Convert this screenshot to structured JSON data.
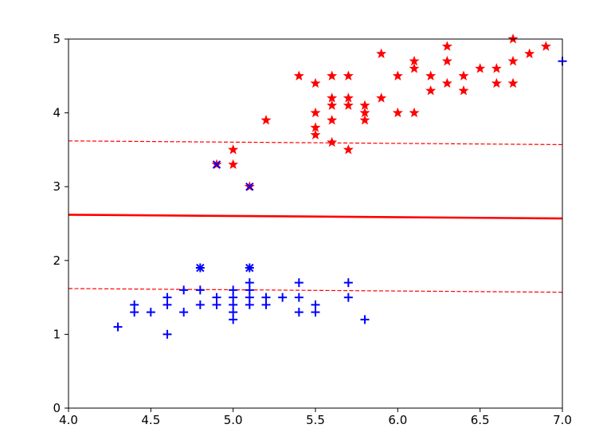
{
  "chart_data": {
    "type": "scatter",
    "xlim": [
      4.0,
      7.0
    ],
    "ylim": [
      0,
      5
    ],
    "xticks": [
      4.0,
      4.5,
      5.0,
      5.5,
      6.0,
      6.5,
      7.0
    ],
    "xtick_labels": [
      "4.0",
      "4.5",
      "5.0",
      "5.5",
      "6.0",
      "6.5",
      "7.0"
    ],
    "yticks": [
      0,
      1,
      2,
      3,
      4,
      5
    ],
    "ytick_labels": [
      "0",
      "1",
      "2",
      "3",
      "4",
      "5"
    ],
    "grid": false,
    "colors": {
      "positive": "#ff0000",
      "negative": "#0000ff",
      "support_vector": "#0000ff",
      "line": "#ff0000"
    },
    "series": [
      {
        "marker": "star",
        "color": "#ff0000",
        "points": [
          [
            4.9,
            3.3
          ],
          [
            5.0,
            3.5
          ],
          [
            5.0,
            3.3
          ],
          [
            5.1,
            3.0
          ],
          [
            5.2,
            3.9
          ],
          [
            5.4,
            4.5
          ],
          [
            5.5,
            4.4
          ],
          [
            5.5,
            4.0
          ],
          [
            5.5,
            3.8
          ],
          [
            5.5,
            3.7
          ],
          [
            5.6,
            4.5
          ],
          [
            5.6,
            4.2
          ],
          [
            5.6,
            4.1
          ],
          [
            5.6,
            3.9
          ],
          [
            5.6,
            3.6
          ],
          [
            5.7,
            4.5
          ],
          [
            5.7,
            4.2
          ],
          [
            5.7,
            4.1
          ],
          [
            5.7,
            3.5
          ],
          [
            5.8,
            4.1
          ],
          [
            5.8,
            4.0
          ],
          [
            5.8,
            3.9
          ],
          [
            5.9,
            4.8
          ],
          [
            5.9,
            4.2
          ],
          [
            6.0,
            4.5
          ],
          [
            6.0,
            4.0
          ],
          [
            6.1,
            4.7
          ],
          [
            6.1,
            4.6
          ],
          [
            6.1,
            4.0
          ],
          [
            6.2,
            4.5
          ],
          [
            6.2,
            4.3
          ],
          [
            6.3,
            4.9
          ],
          [
            6.3,
            4.7
          ],
          [
            6.3,
            4.4
          ],
          [
            6.4,
            4.5
          ],
          [
            6.4,
            4.3
          ],
          [
            6.5,
            4.6
          ],
          [
            6.6,
            4.6
          ],
          [
            6.6,
            4.4
          ],
          [
            6.7,
            5.0
          ],
          [
            6.7,
            4.7
          ],
          [
            6.7,
            4.4
          ],
          [
            6.8,
            4.8
          ],
          [
            6.9,
            4.9
          ]
        ]
      },
      {
        "marker": "plus",
        "color": "#0000ff",
        "points": [
          [
            4.3,
            1.1
          ],
          [
            4.4,
            1.4
          ],
          [
            4.4,
            1.3
          ],
          [
            4.5,
            1.3
          ],
          [
            4.6,
            1.5
          ],
          [
            4.6,
            1.4
          ],
          [
            4.6,
            1.0
          ],
          [
            4.7,
            1.6
          ],
          [
            4.7,
            1.3
          ],
          [
            4.8,
            1.9
          ],
          [
            4.8,
            1.6
          ],
          [
            4.8,
            1.4
          ],
          [
            4.9,
            1.5
          ],
          [
            4.9,
            1.4
          ],
          [
            5.0,
            1.6
          ],
          [
            5.0,
            1.5
          ],
          [
            5.0,
            1.4
          ],
          [
            5.0,
            1.3
          ],
          [
            5.0,
            1.2
          ],
          [
            5.1,
            1.9
          ],
          [
            5.1,
            1.7
          ],
          [
            5.1,
            1.6
          ],
          [
            5.1,
            1.5
          ],
          [
            5.1,
            1.4
          ],
          [
            5.2,
            1.5
          ],
          [
            5.2,
            1.4
          ],
          [
            5.3,
            1.5
          ],
          [
            5.4,
            1.7
          ],
          [
            5.4,
            1.5
          ],
          [
            5.4,
            1.3
          ],
          [
            5.5,
            1.4
          ],
          [
            5.5,
            1.3
          ],
          [
            5.7,
            1.7
          ],
          [
            5.7,
            1.5
          ],
          [
            5.8,
            1.2
          ],
          [
            7.0,
            4.7
          ]
        ]
      },
      {
        "marker": "x",
        "color": "#0000ff",
        "points": [
          [
            4.9,
            3.3
          ],
          [
            5.1,
            3.0
          ],
          [
            4.8,
            1.9
          ],
          [
            5.1,
            1.9
          ]
        ]
      }
    ],
    "lines": [
      {
        "style": "solid",
        "color": "#ff0000",
        "from": [
          4.0,
          2.62
        ],
        "to": [
          7.0,
          2.57
        ]
      },
      {
        "style": "dashed",
        "color": "#ff0000",
        "from": [
          4.0,
          3.62
        ],
        "to": [
          7.0,
          3.57
        ]
      },
      {
        "style": "dashed",
        "color": "#ff0000",
        "from": [
          4.0,
          1.62
        ],
        "to": [
          7.0,
          1.57
        ]
      }
    ]
  }
}
